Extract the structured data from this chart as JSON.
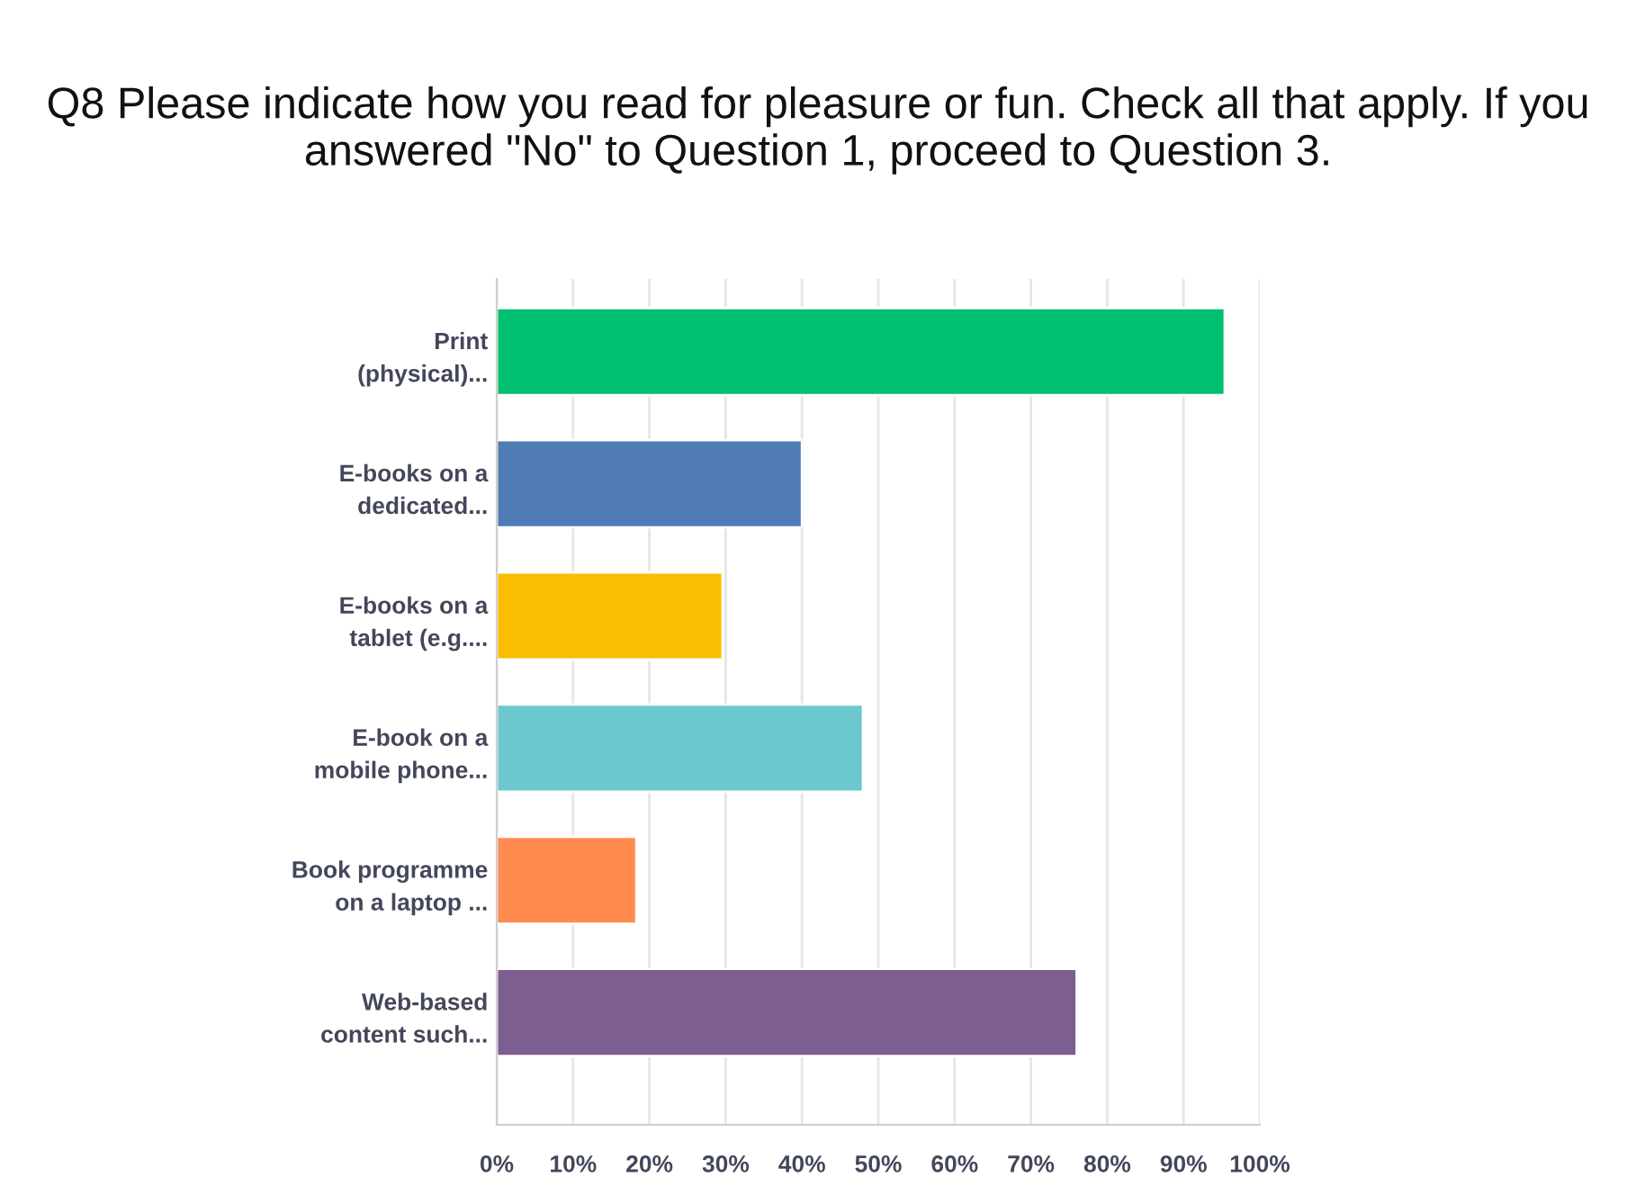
{
  "chart_data": {
    "type": "bar",
    "orientation": "horizontal",
    "title": "Q8 Please indicate how you read for pleasure or fun. Check all that apply. If you answered \"No\" to Question 1, proceed to Question 3.",
    "categories": [
      "Print\n(physical)...",
      "E-books on a\ndedicated...",
      "E-books on a\ntablet (e.g....",
      "E-book on a\nmobile phone...",
      "Book programme\non a laptop ...",
      "Web-based\ncontent such..."
    ],
    "values": [
      95.4,
      40,
      29.6,
      48,
      18.3,
      76
    ],
    "colors": [
      "#00bf6f",
      "#507cb6",
      "#f9be00",
      "#6bc8cd",
      "#ff8b4f",
      "#7d5e90"
    ],
    "xlim": [
      0,
      100
    ],
    "xticks": [
      {
        "value": 0,
        "label": "0%"
      },
      {
        "value": 10,
        "label": "10%"
      },
      {
        "value": 20,
        "label": "20%"
      },
      {
        "value": 30,
        "label": "30%"
      },
      {
        "value": 40,
        "label": "40%"
      },
      {
        "value": 50,
        "label": "50%"
      },
      {
        "value": 60,
        "label": "60%"
      },
      {
        "value": 70,
        "label": "70%"
      },
      {
        "value": 80,
        "label": "80%"
      },
      {
        "value": 90,
        "label": "90%"
      },
      {
        "value": 100,
        "label": "100%"
      }
    ],
    "grid": "x"
  }
}
